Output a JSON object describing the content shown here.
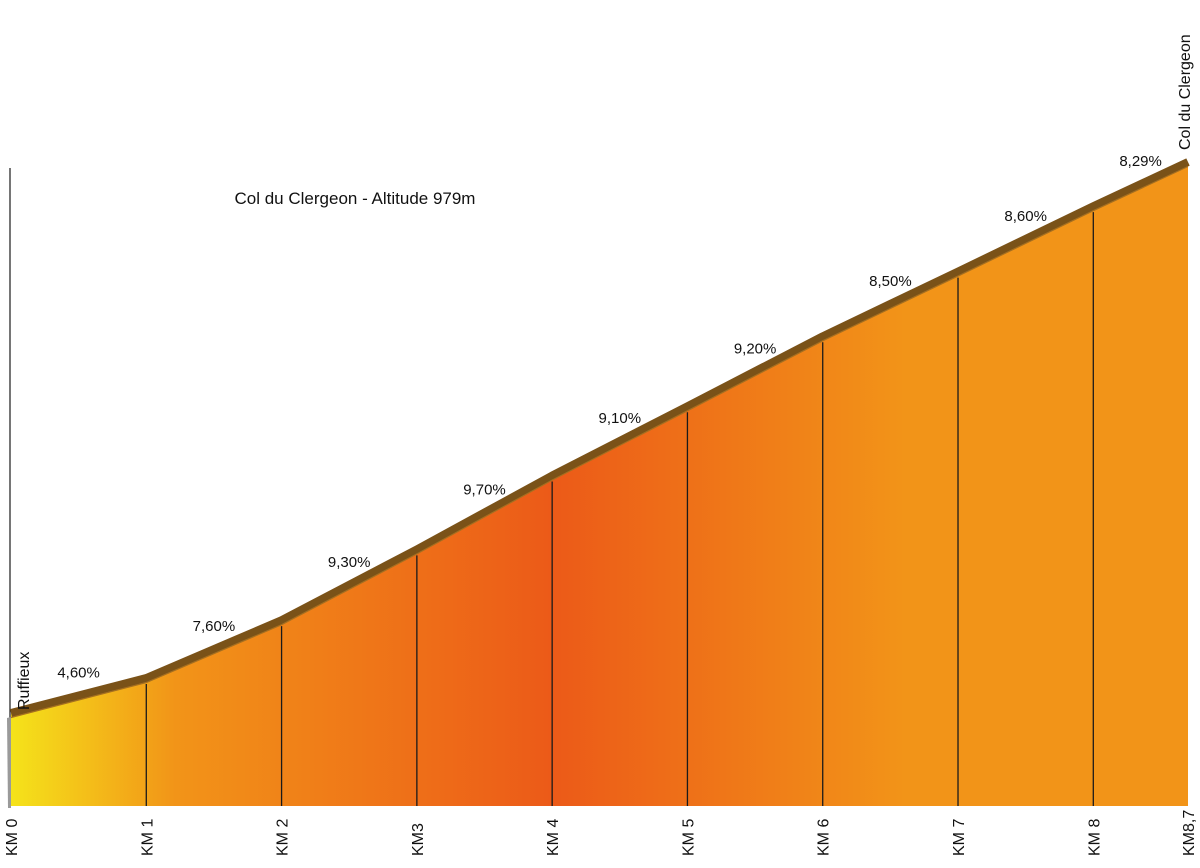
{
  "chart_data": {
    "type": "area",
    "title": "Col du Clergeon - Altitude 979m",
    "start_label": "Ruffieux",
    "end_label": "Col du Clergeon",
    "x_tick_labels": [
      "KM 0",
      "KM 1",
      "KM 2",
      "KM3",
      "KM 4",
      "KM 5",
      "KM 6",
      "KM 7",
      "KM 8",
      "KM8,7"
    ],
    "x_km": [
      0,
      1,
      2,
      3,
      4,
      5,
      6,
      7,
      8,
      8.7
    ],
    "gradient_labels": [
      "4,60%",
      "7,60%",
      "9,30%",
      "9,70%",
      "9,10%",
      "9,20%",
      "8,50%",
      "8,60%",
      "8,29%"
    ],
    "gradients_percent": [
      4.6,
      7.6,
      9.3,
      9.7,
      9.1,
      9.2,
      8.5,
      8.6,
      8.29
    ],
    "colors": {
      "fill_light": "#f5e31a",
      "fill_mid": "#f29418",
      "fill_peak": "#ec5a18",
      "top_line": "#7a5218",
      "top_line_shadow": "#a56f20",
      "separator": "#1a1a1a",
      "base_shadow": "#9a9a9a"
    }
  }
}
